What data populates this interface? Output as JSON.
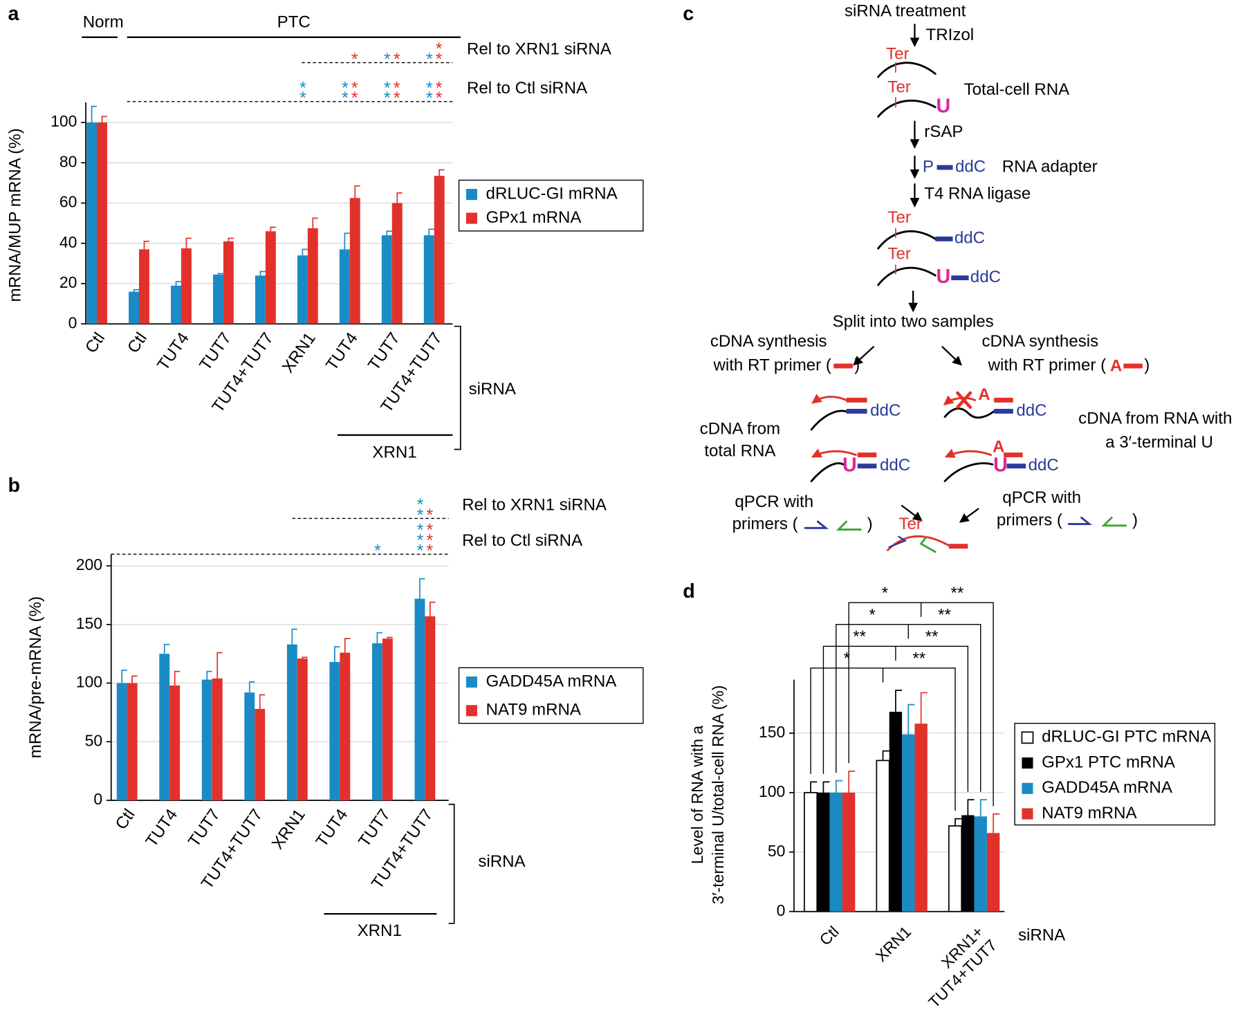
{
  "panels": [
    "a",
    "b",
    "c",
    "d"
  ],
  "chart_data": [
    {
      "type": "bar",
      "ylabel": "mRNA/MUP mRNA (%)",
      "categories": [
        "Ctl",
        "Ctl",
        "TUT4",
        "TUT7",
        "TUT4+TUT7",
        "XRN1",
        "TUT4",
        "TUT7",
        "TUT4+TUT7"
      ],
      "series": [
        {
          "name": "dRLUC-GI mRNA",
          "color": "#1a8bc4",
          "values": [
            100,
            16,
            19,
            24.5,
            24,
            34,
            37,
            44,
            44
          ],
          "errors": [
            8,
            1,
            2,
            0.5,
            2,
            3,
            8,
            2,
            3
          ]
        },
        {
          "name": "GPx1 mRNA",
          "color": "#e2312a",
          "values": [
            100,
            37,
            37.5,
            41,
            46,
            47.5,
            62.5,
            60,
            73.5
          ],
          "errors": [
            3,
            4,
            5,
            1.5,
            2,
            5,
            6,
            5,
            3
          ]
        }
      ],
      "ylim": [
        0,
        110
      ],
      "yticks": [
        0,
        20,
        40,
        60,
        80,
        100
      ],
      "grid": true,
      "groups": {
        "norm": "Norm",
        "ptc": "PTC",
        "sirna": "siRNA",
        "xrn1": "XRN1"
      },
      "significance": [
        {
          "label": "Rel to XRN1 siRNA",
          "stars": [
            [
              null,
              null,
              null,
              null,
              null,
              null,
              null,
              "*",
              "*"
            ],
            [
              null,
              null,
              null,
              null,
              null,
              null,
              "*",
              "*",
              "**"
            ]
          ]
        },
        {
          "label": "Rel to Ctl siRNA",
          "stars": [
            [
              null,
              null,
              null,
              null,
              null,
              "**",
              "**",
              "**",
              "**"
            ],
            [
              null,
              null,
              null,
              null,
              null,
              null,
              "**",
              "**",
              "**"
            ]
          ]
        }
      ]
    },
    {
      "type": "bar",
      "ylabel": "mRNA/pre-mRNA (%)",
      "categories": [
        "Ctl",
        "TUT4",
        "TUT7",
        "TUT4+TUT7",
        "XRN1",
        "TUT4",
        "TUT7",
        "TUT4+TUT7"
      ],
      "series": [
        {
          "name": "GADD45A mRNA",
          "color": "#1a8bc4",
          "values": [
            100,
            125,
            103,
            92,
            133,
            118,
            134,
            172
          ],
          "errors": [
            11,
            8,
            7,
            9,
            13,
            13,
            9,
            17
          ]
        },
        {
          "name": "NAT9 mRNA",
          "color": "#e2312a",
          "values": [
            100,
            98,
            104,
            78,
            121,
            126,
            138,
            157
          ],
          "errors": [
            6,
            12,
            22,
            12,
            1,
            12,
            1,
            12
          ]
        }
      ],
      "ylim": [
        0,
        210
      ],
      "yticks": [
        0,
        50,
        100,
        150,
        200
      ],
      "grid": true,
      "groups": {
        "sirna": "siRNA",
        "xrn1": "XRN1"
      },
      "significance": [
        {
          "label": "Rel to XRN1 siRNA",
          "stars": [
            [
              null,
              null,
              null,
              null,
              null,
              null,
              null,
              "**"
            ],
            [
              null,
              null,
              null,
              null,
              null,
              null,
              null,
              "*"
            ]
          ]
        },
        {
          "label": "Rel to Ctl siRNA",
          "stars": [
            [
              null,
              null,
              null,
              null,
              null,
              null,
              "*",
              "***"
            ],
            [
              null,
              null,
              null,
              null,
              null,
              null,
              null,
              "***"
            ]
          ]
        }
      ]
    },
    {
      "type": "bar",
      "ylabel": "Level of RNA with a\n3′-terminal U/total-cell RNA (%)",
      "xlabel": "siRNA",
      "categories": [
        "Ctl",
        "XRN1",
        "XRN1+\nTUT4+TUT7"
      ],
      "series": [
        {
          "name": "dRLUC-GI PTC mRNA",
          "color": "#ffffff",
          "values": [
            100,
            127,
            72
          ],
          "errors": [
            9,
            8,
            6
          ]
        },
        {
          "name": "GPx1 PTC mRNA",
          "color": "#000000",
          "values": [
            100,
            168,
            81
          ],
          "errors": [
            9,
            18,
            13
          ]
        },
        {
          "name": "GADD45A mRNA",
          "color": "#1a8bc4",
          "values": [
            100,
            149,
            80
          ],
          "errors": [
            10,
            25,
            14
          ]
        },
        {
          "name": "NAT9 mRNA",
          "color": "#e2312a",
          "values": [
            100,
            158,
            66
          ],
          "errors": [
            18,
            26,
            16
          ]
        }
      ],
      "ylim": [
        0,
        195
      ],
      "yticks": [
        0,
        50,
        100,
        150
      ],
      "grid": true,
      "pairs": [
        {
          "left": "*",
          "right": "**"
        },
        {
          "left": "*",
          "right": "**"
        },
        {
          "left": "**",
          "right": "**"
        },
        {
          "left": "*",
          "right": "**"
        }
      ]
    }
  ],
  "diagram": {
    "treatment": "siRNA treatment",
    "trizol": "TRIzol",
    "ter": "Ter",
    "u": "U",
    "a": "A",
    "p": "P",
    "ddc": "ddC",
    "total_cell_rna": "Total-cell RNA",
    "rsap": "rSAP",
    "rna_adapter": "RNA adapter",
    "ligase": "T4 RNA ligase",
    "split": "Split into two samples",
    "cdna_synthesis": "cDNA synthesis",
    "rt_primer": "with RT primer (",
    "close_paren": ")",
    "cdna_total": [
      "cDNA from",
      "total RNA"
    ],
    "cdna_u": [
      "cDNA from RNA with",
      "a 3′-terminal U"
    ],
    "qpcr": "qPCR with",
    "primers": "primers ("
  }
}
